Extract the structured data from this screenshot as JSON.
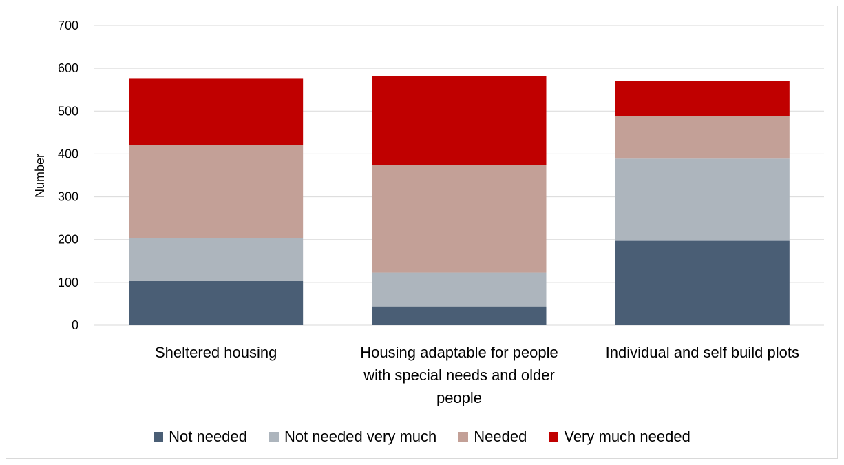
{
  "chart_data": {
    "type": "bar",
    "stacked": true,
    "categories": [
      [
        "Sheltered housing"
      ],
      [
        "Housing adaptable  for people",
        "with special needs and older",
        "people"
      ],
      [
        "Individual and self build plots"
      ]
    ],
    "series": [
      {
        "name": "Not needed",
        "color": "#4a5e75",
        "values": [
          103,
          44,
          197
        ]
      },
      {
        "name": "Not needed very much",
        "color": "#adb5bd",
        "values": [
          100,
          79,
          192
        ]
      },
      {
        "name": "Needed",
        "color": "#c3a097",
        "values": [
          218,
          251,
          100
        ]
      },
      {
        "name": "Very much needed",
        "color": "#c00000",
        "values": [
          156,
          208,
          81
        ]
      }
    ],
    "ylabel": "Number",
    "ylim": [
      0,
      700
    ],
    "yticks": [
      0,
      100,
      200,
      300,
      400,
      500,
      600,
      700
    ],
    "grid": true,
    "legend_position": "bottom"
  }
}
